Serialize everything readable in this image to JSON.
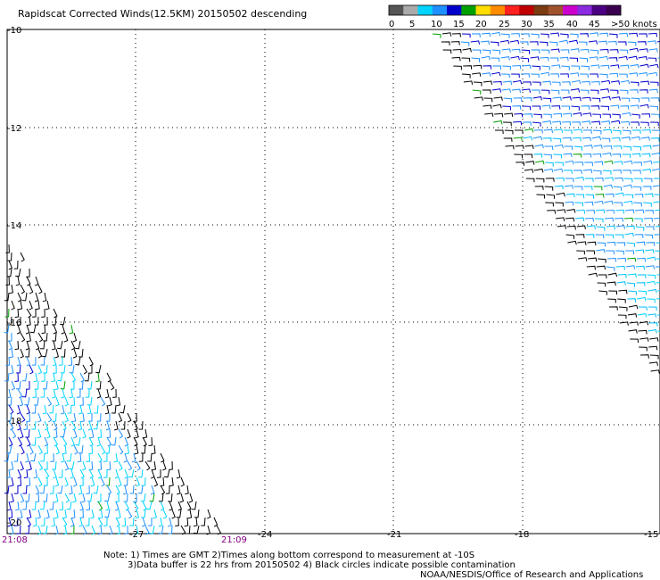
{
  "title": "Rapidscat Corrected Winds(12.5KM) 20150502 descending",
  "legend": {
    "swatch_colors": [
      "#555555",
      "#aaaaaa",
      "#00d4ff",
      "#1e90ff",
      "#0000cd",
      "#00a000",
      "#ffdd00",
      "#ff8c00",
      "#ff2020",
      "#c00000",
      "#7a3b12",
      "#a0522d",
      "#cc00cc",
      "#8a2be2",
      "#4b0082",
      "#3a004f"
    ],
    "labels": [
      "0",
      "5",
      "10",
      "15",
      "20",
      "25",
      "30",
      "35",
      "40",
      "45",
      ">50 knots"
    ]
  },
  "map": {
    "y_labels": [
      "-10",
      "-12",
      "-14",
      "-16",
      "-18",
      "-20"
    ],
    "x_labels": [
      "-27",
      "-24",
      "-21",
      "-18",
      "-15"
    ],
    "time_labels": [
      "21:08",
      "21:09"
    ],
    "lon_range": [
      -30,
      -15
    ],
    "lat_range": [
      -20,
      -10
    ],
    "grid": "dotted"
  },
  "notes": {
    "line1": "Note: 1) Times are GMT 2)Times along bottom correspond to measurement at -10S",
    "line2": "3)Data buffer is 22 hrs from 20150502 4) Black circles indicate possible contamination",
    "line3": "NOAA/NESDIS/Office of Research and Applications"
  }
}
